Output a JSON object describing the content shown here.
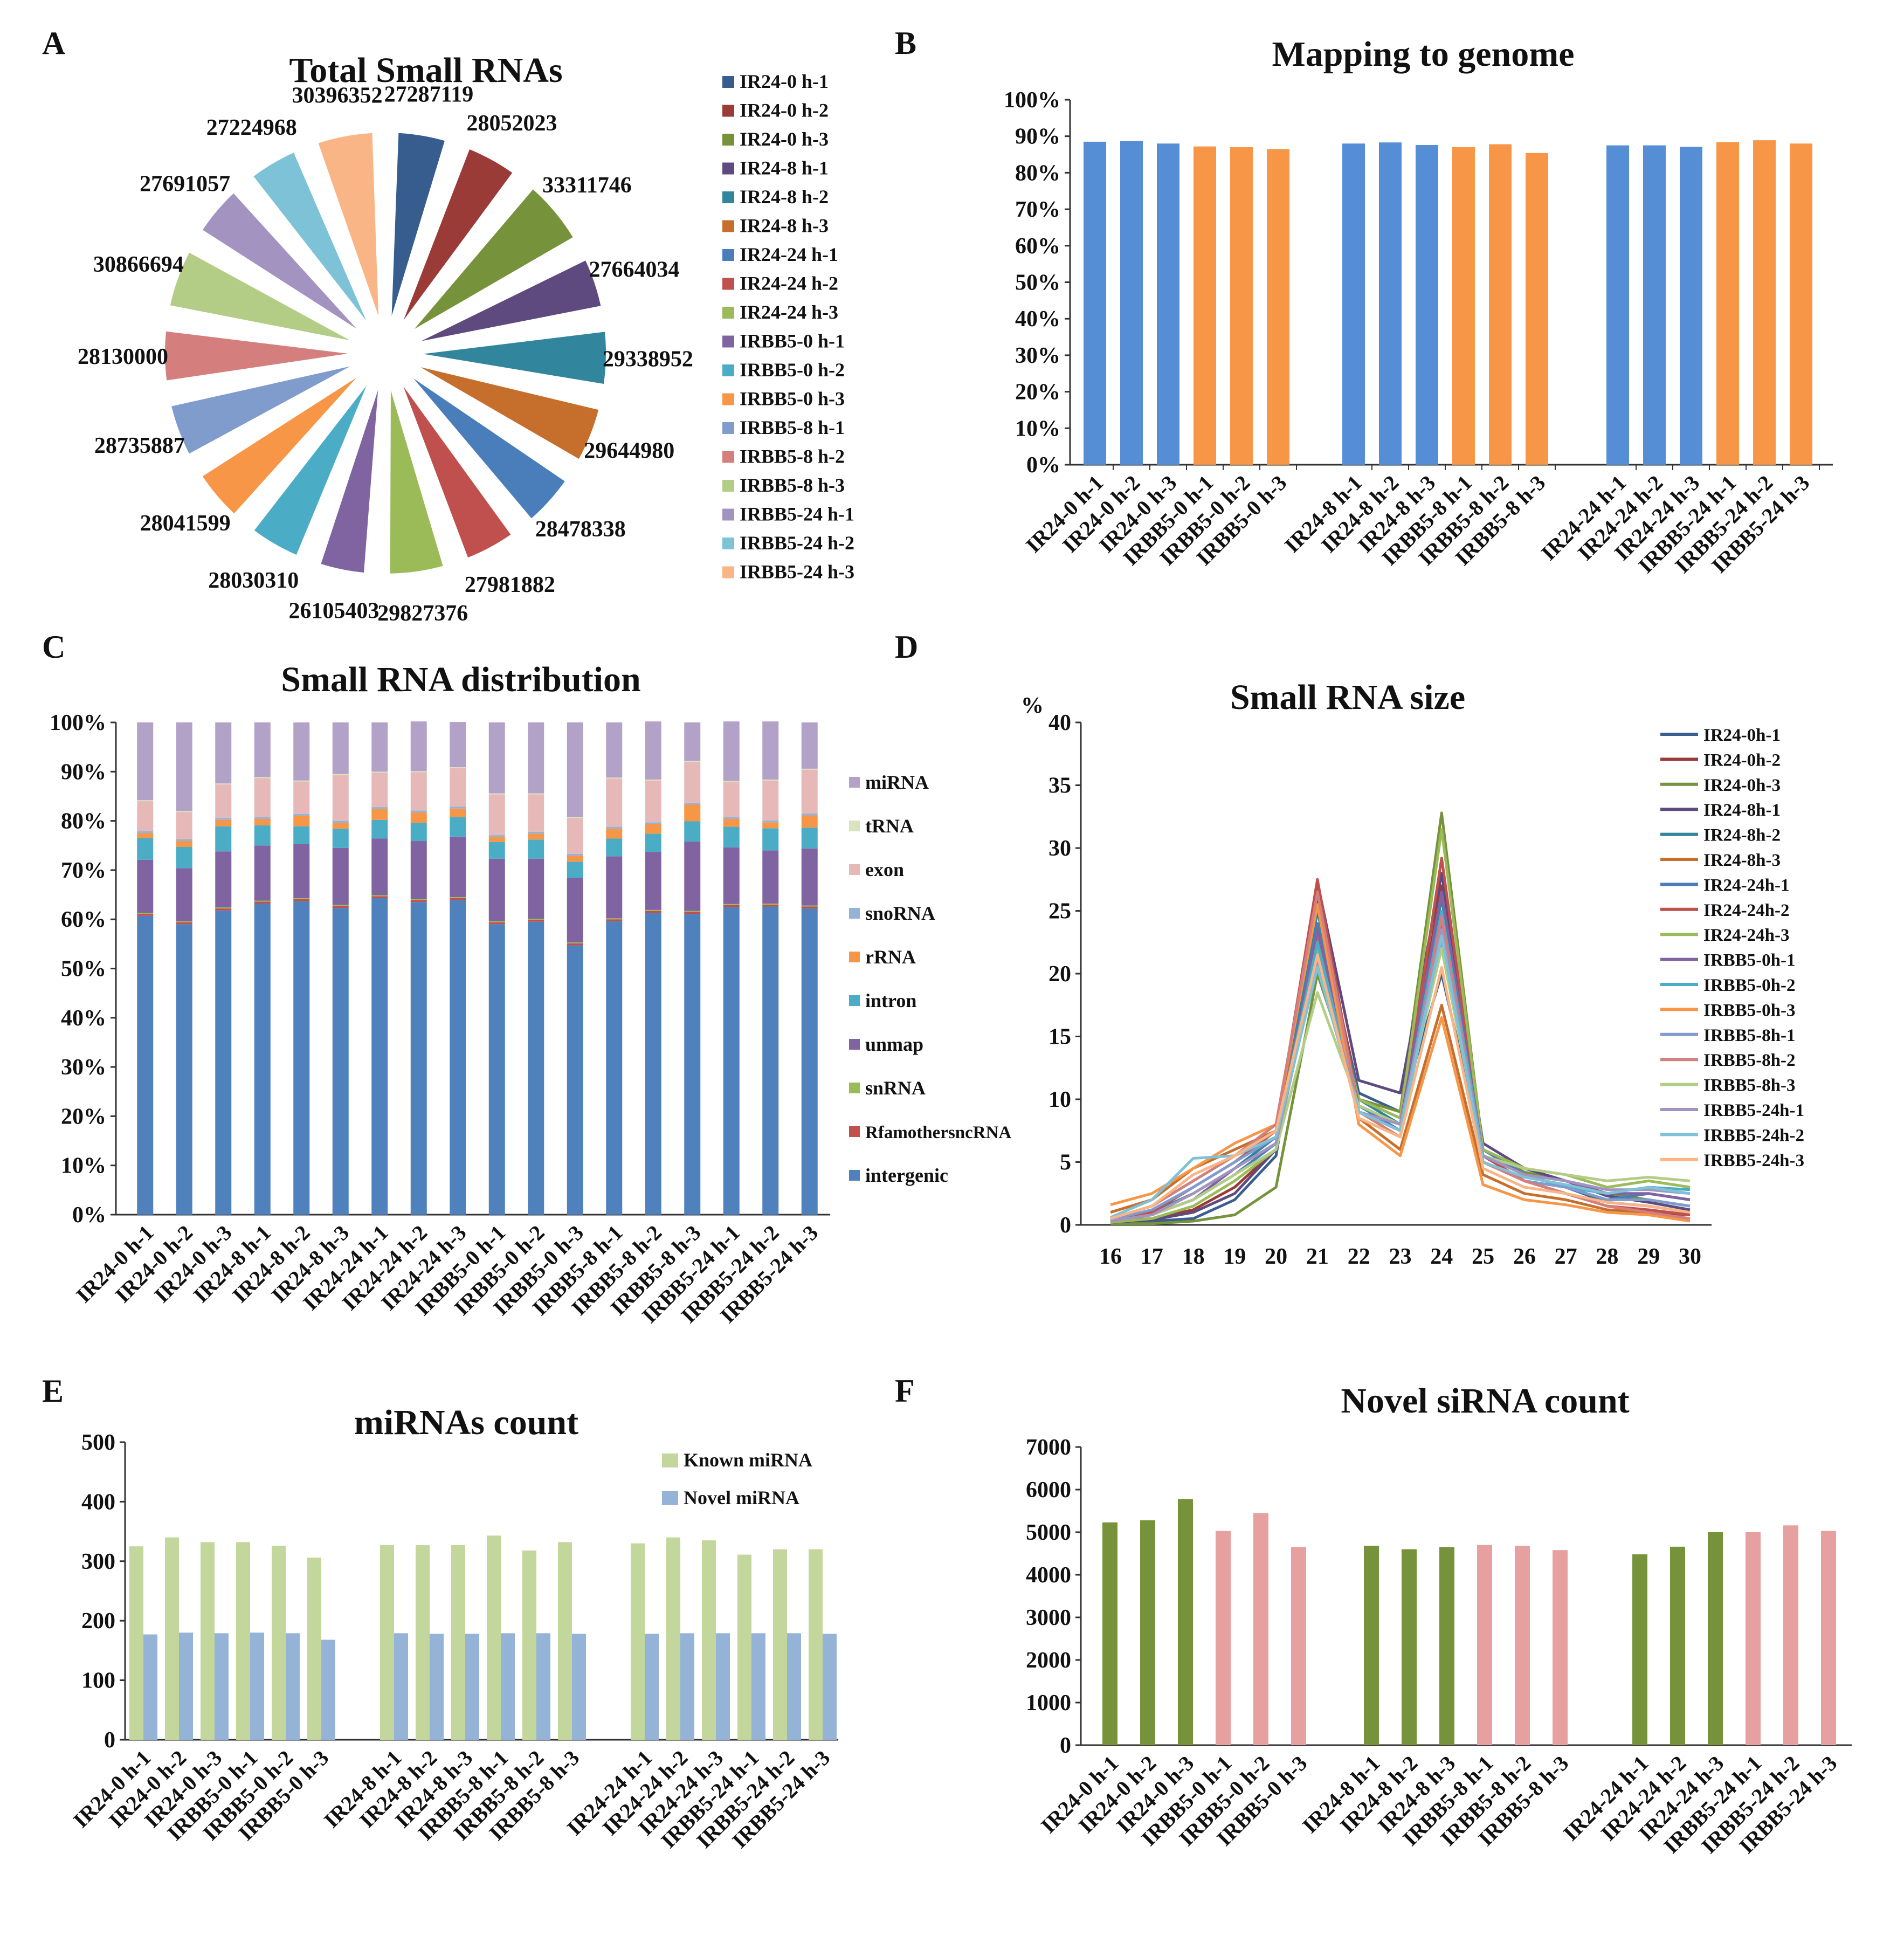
{
  "chart_data": [
    {
      "id": "A",
      "panel_label": "A",
      "type": "pie",
      "title": "Total Small RNAs",
      "labels": [
        "IR24-0 h-1",
        "IR24-0 h-2",
        "IR24-0 h-3",
        "IR24-8 h-1",
        "IR24-8 h-2",
        "IR24-8 h-3",
        "IR24-24 h-1",
        "IR24-24 h-2",
        "IR24-24 h-3",
        "IRBB5-0 h-1",
        "IRBB5-0 h-2",
        "IRBB5-0 h-3",
        "IRBB5-8 h-1",
        "IRBB5-8 h-2",
        "IRBB5-8 h-3",
        "IRBB5-24 h-1",
        "IRBB5-24 h-2",
        "IRBB5-24 h-3"
      ],
      "values": [
        27287119,
        28052023,
        33311746,
        27664034,
        29338952,
        29644980,
        28478338,
        27981882,
        29827376,
        26105403,
        28030310,
        28041599,
        28735887,
        28130000,
        30866694,
        27691057,
        27224968,
        30396352
      ],
      "colors": [
        "#375d8f",
        "#9a3b38",
        "#76933c",
        "#5e4a7f",
        "#31859c",
        "#c66f2d",
        "#4a7ebb",
        "#c0504d",
        "#9bbb59",
        "#8064a2",
        "#4bacc6",
        "#f79646",
        "#7f9ccc",
        "#d47f7d",
        "#b4cd86",
        "#a393c0",
        "#7ec2d7",
        "#f9b586"
      ]
    },
    {
      "id": "B",
      "panel_label": "B",
      "type": "bar",
      "title": "Mapping to genome",
      "categories": [
        "IR24-0 h-1",
        "IR24-0 h-2",
        "IR24-0 h-3",
        "IRBB5-0 h-1",
        "IRBB5-0 h-2",
        "IRBB5-0 h-3",
        "IR24-8 h-1",
        "IR24-8 h-2",
        "IR24-8 h-3",
        "IRBB5-8 h-1",
        "IRBB5-8 h-2",
        "IRBB5-8 h-3",
        "IR24-24 h-1",
        "IR24-24 h-2",
        "IR24-24 h-3",
        "IRBB5-24 h-1",
        "IRBB5-24 h-2",
        "IRBB5-24 h-3"
      ],
      "values": [
        88.5,
        88.7,
        88.0,
        87.2,
        87.0,
        86.5,
        88.0,
        88.3,
        87.6,
        87.0,
        87.8,
        85.4,
        87.5,
        87.5,
        87.1,
        88.4,
        88.9,
        88.0
      ],
      "colors": [
        "#558ed5",
        "#558ed5",
        "#558ed5",
        "#f79646",
        "#f79646",
        "#f79646",
        "#558ed5",
        "#558ed5",
        "#558ed5",
        "#f79646",
        "#f79646",
        "#f79646",
        "#558ed5",
        "#558ed5",
        "#558ed5",
        "#f79646",
        "#f79646",
        "#f79646"
      ],
      "yticks": [
        "0%",
        "10%",
        "20%",
        "30%",
        "40%",
        "50%",
        "60%",
        "70%",
        "80%",
        "90%",
        "100%"
      ],
      "ylim": [
        0,
        100
      ]
    },
    {
      "id": "C",
      "panel_label": "C",
      "type": "bar",
      "stacked": true,
      "title": "Small RNA distribution",
      "categories": [
        "IR24-0 h-1",
        "IR24-0 h-2",
        "IR24-0 h-3",
        "IR24-8 h-1",
        "IR24-8 h-2",
        "IR24-8 h-3",
        "IR24-24 h-1",
        "IR24-24 h-2",
        "IR24-24 h-3",
        "IRBB5-0 h-1",
        "IRBB5-0 h-2",
        "IRBB5-0 h-3",
        "IRBB5-8 h-1",
        "IRBB5-8 h-2",
        "IRBB5-8 h-3",
        "IRBB5-24 h-1",
        "IRBB5-24 h-2",
        "IRBB5-24 h-3"
      ],
      "series": [
        {
          "name": "intergenic",
          "color": "#4f81bd",
          "values": [
            60.7,
            59.0,
            61.8,
            63.2,
            63.7,
            62.3,
            64.3,
            63.5,
            63.9,
            59.0,
            59.5,
            54.7,
            59.6,
            61.3,
            61.1,
            62.5,
            62.6,
            62.2
          ]
        },
        {
          "name": "RfamothersncRNA",
          "color": "#c0504d",
          "values": [
            0.4,
            0.4,
            0.4,
            0.4,
            0.4,
            0.4,
            0.4,
            0.4,
            0.4,
            0.4,
            0.4,
            0.4,
            0.4,
            0.4,
            0.4,
            0.4,
            0.4,
            0.4
          ]
        },
        {
          "name": "snRNA",
          "color": "#9bbb59",
          "values": [
            0.2,
            0.2,
            0.2,
            0.2,
            0.2,
            0.2,
            0.2,
            0.2,
            0.2,
            0.2,
            0.2,
            0.2,
            0.2,
            0.2,
            0.2,
            0.2,
            0.2,
            0.2
          ]
        },
        {
          "name": "unmap",
          "color": "#8064a2",
          "values": [
            10.8,
            10.8,
            11.4,
            11.2,
            11.0,
            11.6,
            11.5,
            11.8,
            12.3,
            12.7,
            12.2,
            13.1,
            12.6,
            11.8,
            14.1,
            11.5,
            10.8,
            11.6
          ]
        },
        {
          "name": "intron",
          "color": "#4bacc6",
          "values": [
            4.4,
            4.3,
            5.1,
            4.1,
            3.6,
            3.9,
            3.8,
            3.7,
            4.0,
            3.4,
            3.9,
            3.3,
            3.6,
            3.7,
            4.1,
            4.2,
            4.5,
            4.2
          ]
        },
        {
          "name": "rRNA",
          "color": "#f79646",
          "values": [
            1.0,
            1.2,
            1.3,
            1.3,
            2.1,
            1.2,
            2.2,
            2.1,
            1.7,
            1.0,
            1.2,
            1.2,
            2.0,
            1.9,
            3.4,
            1.6,
            1.2,
            2.5
          ]
        },
        {
          "name": "snoRNA",
          "color": "#95b3d7",
          "values": [
            0.4,
            0.4,
            0.4,
            0.4,
            0.4,
            0.4,
            0.4,
            0.4,
            0.4,
            0.4,
            0.4,
            0.4,
            0.4,
            0.4,
            0.4,
            0.4,
            0.4,
            0.4
          ]
        },
        {
          "name": "exon",
          "color": "#e6b9b8",
          "values": [
            6.1,
            5.5,
            6.8,
            7.9,
            6.6,
            9.3,
            7.0,
            7.8,
            7.8,
            8.3,
            7.6,
            7.3,
            9.8,
            8.5,
            8.3,
            7.1,
            8.1,
            8.9
          ]
        },
        {
          "name": "tRNA",
          "color": "#d7e4bd",
          "values": [
            0.2,
            0.2,
            0.2,
            0.2,
            0.2,
            0.2,
            0.2,
            0.2,
            0.2,
            0.2,
            0.2,
            0.2,
            0.2,
            0.2,
            0.2,
            0.2,
            0.2,
            0.2
          ]
        },
        {
          "name": "miRNA",
          "color": "#b3a2c7",
          "values": [
            15.8,
            18.0,
            12.4,
            11.1,
            11.8,
            10.5,
            10.0,
            10.1,
            9.2,
            14.4,
            14.4,
            19.2,
            11.2,
            11.8,
            7.8,
            12.1,
            11.8,
            9.4
          ]
        }
      ],
      "yticks": [
        "0%",
        "10%",
        "20%",
        "30%",
        "40%",
        "50%",
        "60%",
        "70%",
        "80%",
        "90%",
        "100%"
      ],
      "ylim": [
        0,
        100
      ]
    },
    {
      "id": "D",
      "panel_label": "D",
      "type": "line",
      "title": "Small RNA size",
      "ylabel": "%",
      "x": [
        16,
        17,
        18,
        19,
        20,
        21,
        22,
        23,
        24,
        25,
        26,
        27,
        28,
        29,
        30
      ],
      "ylim": [
        0,
        40
      ],
      "yticks": [
        0,
        5,
        10,
        15,
        20,
        25,
        30,
        35,
        40
      ],
      "series": [
        {
          "name": "IR24-0h-1",
          "color": "#3a5f8f",
          "values": [
            0.2,
            0.3,
            0.5,
            2.0,
            5.5,
            25.0,
            10.5,
            9.0,
            20.0,
            6.0,
            4.0,
            3.0,
            1.8,
            1.5,
            1.0
          ]
        },
        {
          "name": "IR24-0h-2",
          "color": "#9a3b38",
          "values": [
            0.3,
            0.5,
            1.2,
            3.0,
            6.0,
            26.0,
            10.0,
            8.5,
            27.0,
            5.5,
            3.5,
            2.5,
            1.5,
            1.0,
            0.8
          ]
        },
        {
          "name": "IR24-0h-3",
          "color": "#76933c",
          "values": [
            0.1,
            0.1,
            0.3,
            0.8,
            3.0,
            20.0,
            10.0,
            9.0,
            32.8,
            6.0,
            4.2,
            3.5,
            2.5,
            2.0,
            1.5
          ]
        },
        {
          "name": "IR24-8h-1",
          "color": "#5e4a7f",
          "values": [
            0.2,
            0.4,
            1.0,
            2.5,
            6.0,
            27.3,
            11.5,
            10.5,
            28.0,
            6.5,
            4.5,
            3.5,
            2.3,
            1.8,
            1.2
          ]
        },
        {
          "name": "IR24-8h-2",
          "color": "#31859c",
          "values": [
            0.4,
            1.0,
            2.5,
            4.5,
            7.0,
            25.0,
            10.0,
            8.0,
            26.0,
            6.0,
            4.0,
            3.0,
            2.0,
            2.5,
            2.0
          ]
        },
        {
          "name": "IR24-8h-3",
          "color": "#c66f2d",
          "values": [
            1.0,
            2.0,
            4.5,
            6.0,
            7.5,
            23.0,
            8.5,
            6.0,
            17.5,
            4.0,
            2.5,
            2.0,
            1.2,
            1.0,
            0.5
          ]
        },
        {
          "name": "IR24-24h-1",
          "color": "#4a7ebb",
          "values": [
            0.3,
            0.8,
            2.0,
            4.0,
            6.5,
            24.0,
            9.5,
            7.5,
            24.0,
            6.0,
            4.0,
            3.0,
            2.0,
            2.5,
            2.0
          ]
        },
        {
          "name": "IR24-24h-2",
          "color": "#c0504d",
          "values": [
            0.5,
            1.0,
            3.0,
            5.0,
            7.5,
            27.5,
            9.0,
            7.5,
            29.2,
            5.5,
            3.5,
            2.5,
            1.5,
            1.2,
            0.8
          ]
        },
        {
          "name": "IR24-24h-3",
          "color": "#9bbb59",
          "values": [
            0.2,
            0.5,
            1.5,
            3.5,
            6.0,
            22.0,
            10.0,
            8.5,
            31.5,
            6.0,
            4.5,
            4.0,
            3.0,
            3.5,
            3.0
          ]
        },
        {
          "name": "IRBB5-0h-1",
          "color": "#8064a2",
          "values": [
            0.3,
            0.8,
            2.0,
            4.5,
            6.5,
            23.5,
            9.5,
            8.0,
            26.5,
            5.5,
            4.0,
            3.5,
            2.5,
            2.5,
            2.0
          ]
        },
        {
          "name": "IRBB5-0h-2",
          "color": "#4bacc6",
          "values": [
            0.5,
            1.5,
            3.5,
            5.5,
            7.0,
            22.5,
            9.0,
            7.5,
            25.0,
            5.5,
            4.0,
            3.0,
            2.5,
            3.0,
            2.8
          ]
        },
        {
          "name": "IRBB5-0h-3",
          "color": "#f79646",
          "values": [
            1.6,
            2.5,
            4.5,
            6.5,
            8.0,
            25.5,
            8.0,
            5.5,
            16.5,
            3.2,
            2.0,
            1.6,
            1.0,
            0.8,
            0.3
          ]
        },
        {
          "name": "IRBB5-8h-1",
          "color": "#7f9ccc",
          "values": [
            0.4,
            1.2,
            3.0,
            5.0,
            7.0,
            21.5,
            9.0,
            7.5,
            22.5,
            5.0,
            3.5,
            3.0,
            2.0,
            2.0,
            1.5
          ]
        },
        {
          "name": "IRBB5-8h-2",
          "color": "#d47f7d",
          "values": [
            0.5,
            1.5,
            3.5,
            5.5,
            8.0,
            26.5,
            9.0,
            7.0,
            24.5,
            5.0,
            3.5,
            2.5,
            1.5,
            1.0,
            0.5
          ]
        },
        {
          "name": "IRBB5-8h-3",
          "color": "#b4cd86",
          "values": [
            0.3,
            0.8,
            2.0,
            4.0,
            6.0,
            18.5,
            9.5,
            8.0,
            22.0,
            5.5,
            4.5,
            4.0,
            3.5,
            3.8,
            3.5
          ]
        },
        {
          "name": "IRBB5-24h-1",
          "color": "#a393c0",
          "values": [
            0.3,
            0.8,
            2.5,
            4.5,
            6.5,
            21.0,
            9.0,
            8.0,
            23.5,
            5.5,
            4.0,
            3.5,
            2.8,
            2.8,
            2.5
          ]
        },
        {
          "name": "IRBB5-24h-2",
          "color": "#7ec2d7",
          "values": [
            0.6,
            2.0,
            5.3,
            5.5,
            7.0,
            20.5,
            9.0,
            7.5,
            23.0,
            5.0,
            3.8,
            3.2,
            2.5,
            3.0,
            2.5
          ]
        },
        {
          "name": "IRBB5-24h-3",
          "color": "#f9b586",
          "values": [
            0.5,
            1.5,
            4.0,
            5.5,
            7.5,
            21.5,
            8.5,
            7.0,
            20.5,
            4.5,
            3.0,
            2.5,
            1.8,
            1.5,
            1.0
          ]
        }
      ]
    },
    {
      "id": "E",
      "panel_label": "E",
      "type": "bar",
      "title": "miRNAs count",
      "categories": [
        "IR24-0 h-1",
        "IR24-0 h-2",
        "IR24-0 h-3",
        "IRBB5-0 h-1",
        "IRBB5-0 h-2",
        "IRBB5-0 h-3",
        "IR24-8 h-1",
        "IR24-8 h-2",
        "IR24-8 h-3",
        "IRBB5-8 h-1",
        "IRBB5-8 h-2",
        "IRBB5-8 h-3",
        "IR24-24 h-1",
        "IR24-24 h-2",
        "IR24-24 h-3",
        "IRBB5-24 h-1",
        "IRBB5-24 h-2",
        "IRBB5-24 h-3"
      ],
      "series": [
        {
          "name": "Known miRNA",
          "color": "#c3d69b",
          "values": [
            325,
            340,
            332,
            332,
            326,
            306,
            327,
            327,
            327,
            343,
            318,
            332,
            330,
            340,
            335,
            311,
            320,
            320
          ]
        },
        {
          "name": "Novel miRNA",
          "color": "#95b3d7",
          "values": [
            177,
            180,
            179,
            180,
            179,
            168,
            179,
            178,
            178,
            179,
            179,
            178,
            178,
            179,
            179,
            179,
            179,
            178
          ]
        }
      ],
      "yticks": [
        0,
        100,
        200,
        300,
        400,
        500
      ],
      "ylim": [
        0,
        500
      ]
    },
    {
      "id": "F",
      "panel_label": "F",
      "type": "bar",
      "title": "Novel siRNA count",
      "categories": [
        "IR24-0 h-1",
        "IR24-0 h-2",
        "IR24-0 h-3",
        "IRBB5-0 h-1",
        "IRBB5-0 h-2",
        "IRBB5-0 h-3",
        "IR24-8 h-1",
        "IR24-8 h-2",
        "IR24-8 h-3",
        "IRBB5-8 h-1",
        "IRBB5-8 h-2",
        "IRBB5-8 h-3",
        "IR24-24 h-1",
        "IR24-24 h-2",
        "IR24-24 h-3",
        "IRBB5-24 h-1",
        "IRBB5-24 h-2",
        "IRBB5-24 h-3"
      ],
      "values": [
        5230,
        5280,
        5780,
        5030,
        5450,
        4650,
        4680,
        4600,
        4650,
        4700,
        4680,
        4580,
        4480,
        4660,
        5000,
        5000,
        5160,
        5030
      ],
      "colors": [
        "#76933c",
        "#76933c",
        "#76933c",
        "#e6a0a0",
        "#e6a0a0",
        "#e6a0a0",
        "#76933c",
        "#76933c",
        "#76933c",
        "#e6a0a0",
        "#e6a0a0",
        "#e6a0a0",
        "#76933c",
        "#76933c",
        "#76933c",
        "#e6a0a0",
        "#e6a0a0",
        "#e6a0a0"
      ],
      "yticks": [
        0,
        1000,
        2000,
        3000,
        4000,
        5000,
        6000,
        7000
      ],
      "ylim": [
        0,
        7000
      ]
    }
  ]
}
